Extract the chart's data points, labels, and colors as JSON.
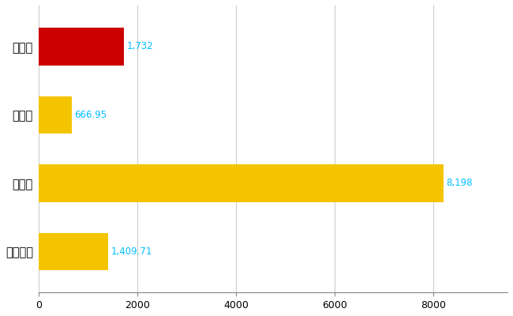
{
  "categories": [
    "塩尺市",
    "県平均",
    "県最大",
    "全国平均"
  ],
  "values": [
    1732,
    666.95,
    8198,
    1409.71
  ],
  "bar_colors": [
    "#cc0000",
    "#f5c400",
    "#f5c400",
    "#f5c400"
  ],
  "value_labels": [
    "1,732",
    "666.95",
    "8,198",
    "1,409.71"
  ],
  "xlim": [
    0,
    9500
  ],
  "xticks": [
    0,
    2000,
    4000,
    6000,
    8000
  ],
  "background_color": "#ffffff",
  "grid_color": "#cccccc",
  "label_color": "#00bfff",
  "label_fontsize": 8.5,
  "ytick_fontsize": 10.5,
  "xtick_fontsize": 9,
  "bar_height": 0.55
}
